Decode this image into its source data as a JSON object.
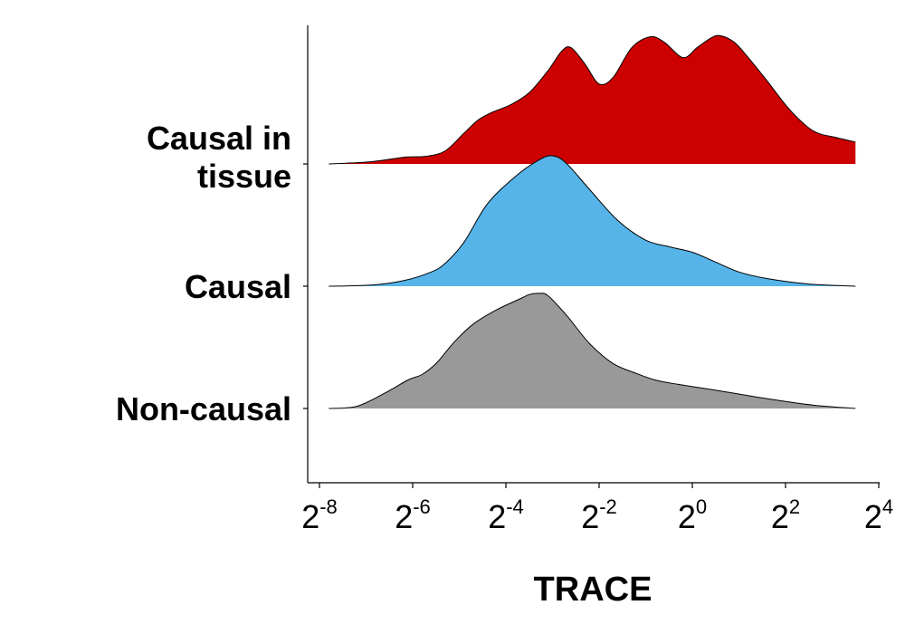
{
  "chart_data": {
    "type": "area",
    "subtype": "ridgeline-density",
    "xlabel": "TRACE",
    "x_scale": "log2",
    "xlim": [
      -8.3,
      3.7
    ],
    "x_ticks": [
      {
        "base": "2",
        "exp": "-8",
        "value": -8
      },
      {
        "base": "2",
        "exp": "-6",
        "value": -6
      },
      {
        "base": "2",
        "exp": "-4",
        "value": -4
      },
      {
        "base": "2",
        "exp": "-2",
        "value": -2
      },
      {
        "base": "2",
        "exp": "0",
        "value": 0
      },
      {
        "base": "2",
        "exp": "2",
        "value": 2
      },
      {
        "base": "2",
        "exp": "4",
        "value": 4
      }
    ],
    "grid": false,
    "legend": "none",
    "series": [
      {
        "name": "Non-causal",
        "label_lines": [
          "Non-causal"
        ],
        "color": "#999999",
        "x": [
          -7.8,
          -7.2,
          -6.6,
          -6.1,
          -5.8,
          -5.5,
          -5.1,
          -4.7,
          -4.2,
          -3.7,
          -3.5,
          -3.3,
          -3.1,
          -2.7,
          -2.2,
          -1.7,
          -1.2,
          -0.8,
          -0.3,
          0.6,
          1.6,
          2.6,
          3.5
        ],
        "density": [
          0.0,
          0.02,
          0.14,
          0.26,
          0.31,
          0.41,
          0.61,
          0.77,
          0.9,
          1.0,
          1.04,
          1.05,
          1.03,
          0.85,
          0.59,
          0.41,
          0.32,
          0.26,
          0.22,
          0.16,
          0.09,
          0.03,
          0.0
        ]
      },
      {
        "name": "Causal",
        "label_lines": [
          "Causal"
        ],
        "color": "#56b4e9",
        "x": [
          -7.8,
          -6.9,
          -6.2,
          -5.6,
          -5.3,
          -4.9,
          -4.4,
          -3.8,
          -3.3,
          -3.0,
          -2.7,
          -2.2,
          -1.6,
          -1.0,
          -0.5,
          0.0,
          0.5,
          1.0,
          1.6,
          2.5,
          3.5
        ],
        "density": [
          0.0,
          0.01,
          0.05,
          0.13,
          0.21,
          0.4,
          0.75,
          1.0,
          1.15,
          1.19,
          1.12,
          0.88,
          0.6,
          0.42,
          0.36,
          0.31,
          0.22,
          0.13,
          0.07,
          0.02,
          0.0
        ]
      },
      {
        "name": "Causal in tissue",
        "label_lines": [
          "Causal in",
          "tissue"
        ],
        "color": "#cc0000",
        "x": [
          -7.8,
          -6.9,
          -6.2,
          -5.7,
          -5.3,
          -4.9,
          -4.6,
          -4.3,
          -3.9,
          -3.5,
          -3.1,
          -2.8,
          -2.6,
          -2.3,
          -2.0,
          -1.7,
          -1.3,
          -0.9,
          -0.6,
          -0.2,
          0.1,
          0.4,
          0.6,
          0.9,
          1.2,
          1.6,
          2.1,
          2.6,
          3.1,
          3.5
        ],
        "density": [
          0.0,
          0.02,
          0.06,
          0.07,
          0.12,
          0.28,
          0.4,
          0.47,
          0.54,
          0.65,
          0.85,
          1.03,
          1.06,
          0.91,
          0.73,
          0.79,
          1.06,
          1.16,
          1.11,
          0.97,
          1.06,
          1.15,
          1.17,
          1.11,
          0.97,
          0.76,
          0.49,
          0.3,
          0.24,
          0.2
        ]
      }
    ]
  }
}
